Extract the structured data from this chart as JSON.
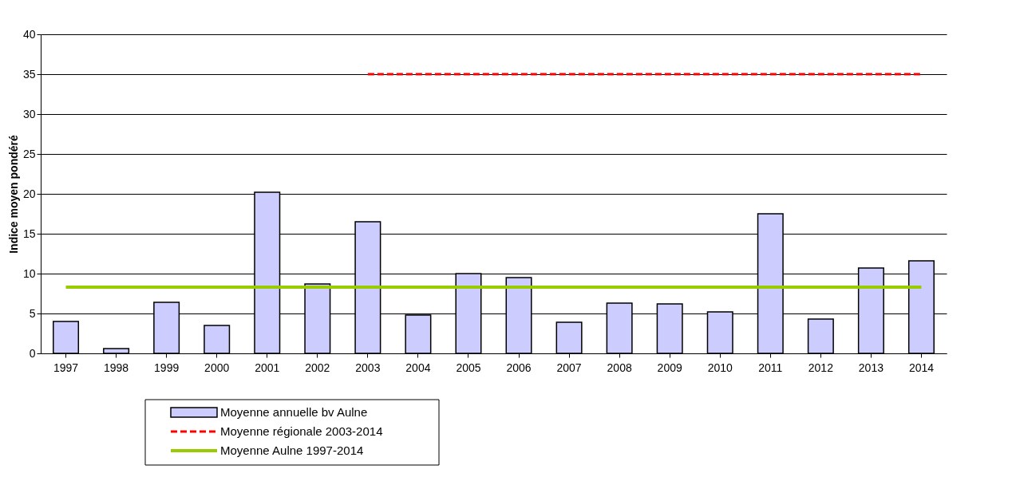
{
  "chart_data": {
    "type": "bar",
    "ylabel": "Indice moyen pondéré",
    "categories": [
      "1997",
      "1998",
      "1999",
      "2000",
      "2001",
      "2002",
      "2003",
      "2004",
      "2005",
      "2006",
      "2007",
      "2008",
      "2009",
      "2010",
      "2011",
      "2012",
      "2013",
      "2014"
    ],
    "series": [
      {
        "name": "Moyenne annuelle bv Aulne",
        "color": "#ccccff",
        "values": [
          4.0,
          0.6,
          6.4,
          3.5,
          20.2,
          8.7,
          16.5,
          4.8,
          10.0,
          9.5,
          3.9,
          6.3,
          6.2,
          5.2,
          17.5,
          4.3,
          10.7,
          11.6
        ]
      },
      {
        "name": "Moyenne régionale 2003-2014",
        "type": "line",
        "line_style": "dashed",
        "color": "#ff0000",
        "values": [
          null,
          null,
          null,
          null,
          null,
          null,
          35,
          35,
          35,
          35,
          35,
          35,
          35,
          35,
          35,
          35,
          35,
          35
        ]
      },
      {
        "name": "Moyenne Aulne 1997-2014",
        "type": "line",
        "line_style": "solid",
        "color": "#99cc00",
        "values": [
          8.3,
          8.3,
          8.3,
          8.3,
          8.3,
          8.3,
          8.3,
          8.3,
          8.3,
          8.3,
          8.3,
          8.3,
          8.3,
          8.3,
          8.3,
          8.3,
          8.3,
          8.3
        ]
      }
    ],
    "ylim": [
      0,
      40
    ],
    "yticks": [
      0,
      5,
      10,
      15,
      20,
      25,
      30,
      35,
      40
    ],
    "grid": "y",
    "legend": "bottom",
    "marker": "none"
  }
}
